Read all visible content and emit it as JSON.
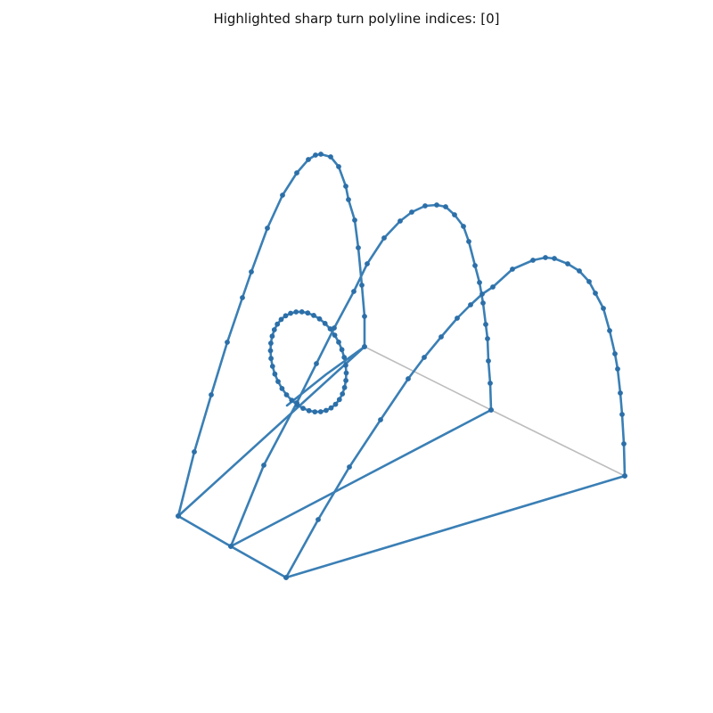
{
  "title": "Highlighted sharp turn polyline indices: [0]",
  "style": {
    "line_color": "#3a7fb5",
    "point_color": "#2c6fa8",
    "hidden_edge_color": "#bdbdbd"
  }
}
